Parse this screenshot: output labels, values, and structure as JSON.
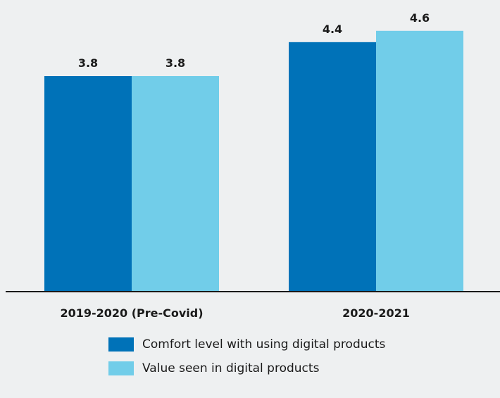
{
  "chart_data": {
    "type": "bar",
    "title": "",
    "xlabel": "",
    "ylabel": "",
    "categories": [
      "2019-2020 (Pre-Covid)",
      "2020-2021"
    ],
    "series": [
      {
        "name": "Comfort level with using digital products",
        "values": [
          3.8,
          4.4
        ],
        "value_labels": [
          "3.8",
          "4.4"
        ],
        "color": "#0072b8"
      },
      {
        "name": "Value seen in digital products",
        "values": [
          3.8,
          4.6
        ],
        "value_labels": [
          "3.8",
          "4.6"
        ],
        "color": "#71cde9"
      }
    ],
    "ylim": [
      0,
      5
    ],
    "grid": false,
    "legend_position": "bottom-center"
  }
}
